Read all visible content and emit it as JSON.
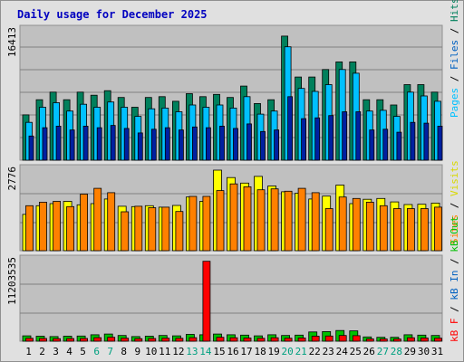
{
  "chart_data": {
    "type": "bar",
    "title": "Daily usage for December 2025",
    "days": [
      "1",
      "2",
      "3",
      "4",
      "5",
      "6",
      "7",
      "8",
      "9",
      "10",
      "11",
      "12",
      "13",
      "14",
      "15",
      "16",
      "17",
      "18",
      "19",
      "20",
      "21",
      "22",
      "23",
      "24",
      "25",
      "26",
      "27",
      "28",
      "29",
      "30",
      "31"
    ],
    "weekend_days": [
      "6",
      "7",
      "13",
      "14",
      "20",
      "21",
      "27",
      "28"
    ],
    "panels": [
      {
        "id": "hits",
        "scale_label": "16413",
        "ylim": [
          0,
          17600
        ],
        "series": [
          {
            "name": "Hits",
            "color": "#00805c",
            "values": [
              6000,
              8000,
              9000,
              8000,
              9000,
              8600,
              9200,
              8300,
              7000,
              8300,
              8400,
              7800,
              8800,
              8400,
              8700,
              8300,
              9800,
              7500,
              8000,
              16413,
              11000,
              11000,
              12000,
              13000,
              13000,
              8000,
              8000,
              7300,
              10000,
              10000,
              9000
            ]
          },
          {
            "name": "Files",
            "color": "#00c0ff",
            "values": [
              5000,
              7000,
              7600,
              6500,
              7400,
              7000,
              7700,
              7000,
              5800,
              6800,
              6900,
              6400,
              7300,
              7000,
              7300,
              6900,
              8400,
              6100,
              6500,
              15000,
              9500,
              9100,
              10000,
              12000,
              11500,
              6500,
              6600,
              5800,
              9000,
              8500,
              7800
            ]
          },
          {
            "name": "Pages",
            "color": "#0020a0",
            "values": [
              3200,
              4300,
              4500,
              4000,
              4500,
              4300,
              4600,
              4200,
              3600,
              4100,
              4300,
              4000,
              4400,
              4300,
              4500,
              4200,
              4800,
              3800,
              4000,
              8400,
              5500,
              5600,
              5900,
              6400,
              6400,
              4000,
              4100,
              3700,
              5000,
              4900,
              4500
            ]
          }
        ]
      },
      {
        "id": "visits",
        "scale_label": "2776",
        "ylim": [
          0,
          2900
        ],
        "series": [
          {
            "name": "Visits",
            "color": "#ffff00",
            "values": [
              1250,
              1550,
              1620,
              1700,
              1580,
              1620,
              1780,
              1530,
              1520,
              1550,
              1500,
              1560,
              1850,
              1700,
              2776,
              2520,
              2330,
              2560,
              2230,
              2030,
              1980,
              1780,
              1880,
              2260,
              1620,
              1770,
              1800,
              1680,
              1590,
              1600,
              1640
            ]
          },
          {
            "name": "Sites",
            "color": "#ff8000",
            "values": [
              1550,
              1670,
              1700,
              1520,
              1950,
              2150,
              2000,
              1340,
              1530,
              1480,
              1500,
              1350,
              1870,
              1870,
              2070,
              2300,
              2200,
              2100,
              2130,
              2050,
              2150,
              2000,
              1450,
              1850,
              1800,
              1670,
              1550,
              1450,
              1450,
              1450,
              1500
            ]
          }
        ]
      },
      {
        "id": "kbytes",
        "scale_label": "11203535",
        "ylim": [
          0,
          11800000
        ],
        "series": [
          {
            "name": "KB In",
            "color": "#00c000",
            "values": [
              750000,
              700000,
              650000,
              700000,
              720000,
              900000,
              1000000,
              800000,
              650000,
              700000,
              800000,
              750000,
              950000,
              900000,
              1000000,
              900000,
              850000,
              750000,
              900000,
              800000,
              850000,
              1300000,
              1350000,
              1500000,
              1450000,
              600000,
              550000,
              550000,
              900000,
              850000,
              800000
            ]
          },
          {
            "name": "KB Out",
            "color": "#ff0000",
            "values": [
              400000,
              380000,
              350000,
              370000,
              380000,
              500000,
              550000,
              420000,
              350000,
              380000,
              420000,
              400000,
              500000,
              11203535,
              550000,
              480000,
              450000,
              400000,
              480000,
              420000,
              450000,
              700000,
              720000,
              800000,
              780000,
              320000,
              300000,
              300000,
              480000,
              450000,
              420000
            ]
          }
        ]
      }
    ],
    "right_labels": {
      "hits_panel": [
        {
          "text": "Pages",
          "color": "#00c0ff"
        },
        {
          "text": " / ",
          "color": "#000000"
        },
        {
          "text": "Files",
          "color": "#0060c0"
        },
        {
          "text": " / ",
          "color": "#000000"
        },
        {
          "text": "Hits",
          "color": "#00805c"
        }
      ],
      "visits_panel": [
        {
          "text": "Sites",
          "color": "#ff8000"
        },
        {
          "text": " / ",
          "color": "#000000"
        },
        {
          "text": "Visits",
          "color": "#d8d800"
        }
      ],
      "kb_panel": [
        {
          "text": "kB F",
          "color": "#ff0000"
        },
        {
          "text": " / ",
          "color": "#000000"
        },
        {
          "text": "kB In",
          "color": "#0060c0"
        },
        {
          "text": " / ",
          "color": "#000000"
        },
        {
          "text": "kB Out",
          "color": "#00c000"
        }
      ]
    }
  }
}
